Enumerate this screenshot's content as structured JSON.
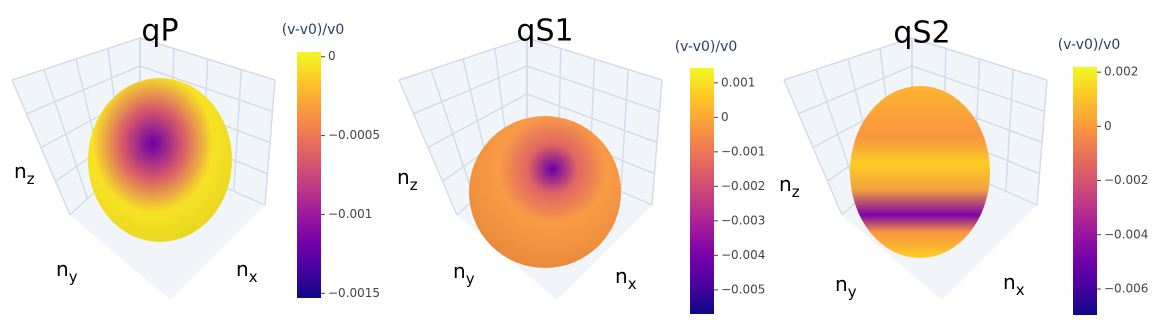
{
  "chart_data": [
    {
      "type": "surface",
      "title": "qP",
      "xlabel": [
        "n",
        "x"
      ],
      "ylabel": [
        "n",
        "y"
      ],
      "zlabel": [
        "n",
        "z"
      ],
      "colorbar_title": "(v-v0)/v0",
      "clim": [
        -0.00153,
        3e-05
      ],
      "cticks": [
        0,
        {
          "value": -0.0005,
          "label": "−0.0005"
        },
        {
          "value": -0.001,
          "label": "−0.001"
        },
        {
          "value": -0.0015,
          "label": "−0.0015"
        }
      ],
      "colorscale": [
        "#0d0887",
        "#46039f",
        "#7201a8",
        "#9c179e",
        "#bd3786",
        "#d8576b",
        "#ed7953",
        "#fb9f3a",
        "#fdca26",
        "#f0f921"
      ]
    },
    {
      "type": "surface",
      "title": "qS1",
      "xlabel": [
        "n",
        "x"
      ],
      "ylabel": [
        "n",
        "y"
      ],
      "zlabel": [
        "n",
        "z"
      ],
      "colorbar_title": "(v-v0)/v0",
      "clim": [
        -0.0057,
        0.00143
      ],
      "cticks": [
        0.001,
        0,
        {
          "value": -0.001,
          "label": "−0.001"
        },
        {
          "value": -0.002,
          "label": "−0.002"
        },
        {
          "value": -0.003,
          "label": "−0.003"
        },
        {
          "value": -0.004,
          "label": "−0.004"
        },
        {
          "value": -0.005,
          "label": "−0.005"
        }
      ],
      "colorscale": [
        "#0d0887",
        "#46039f",
        "#7201a8",
        "#9c179e",
        "#bd3786",
        "#d8576b",
        "#ed7953",
        "#fb9f3a",
        "#fdca26",
        "#f0f921"
      ]
    },
    {
      "type": "surface",
      "title": "qS2",
      "xlabel": [
        "n",
        "x"
      ],
      "ylabel": [
        "n",
        "y"
      ],
      "zlabel": [
        "n",
        "z"
      ],
      "colorbar_title": "(v-v0)/v0",
      "clim": [
        -0.00696,
        0.00219
      ],
      "cticks": [
        0.002,
        0,
        {
          "value": -0.002,
          "label": "−0.002"
        },
        {
          "value": -0.004,
          "label": "−0.004"
        },
        {
          "value": -0.006,
          "label": "−0.006"
        }
      ],
      "colorscale": [
        "#0d0887",
        "#46039f",
        "#7201a8",
        "#9c179e",
        "#bd3786",
        "#d8576b",
        "#ed7953",
        "#fb9f3a",
        "#fdca26",
        "#f0f921"
      ]
    }
  ]
}
